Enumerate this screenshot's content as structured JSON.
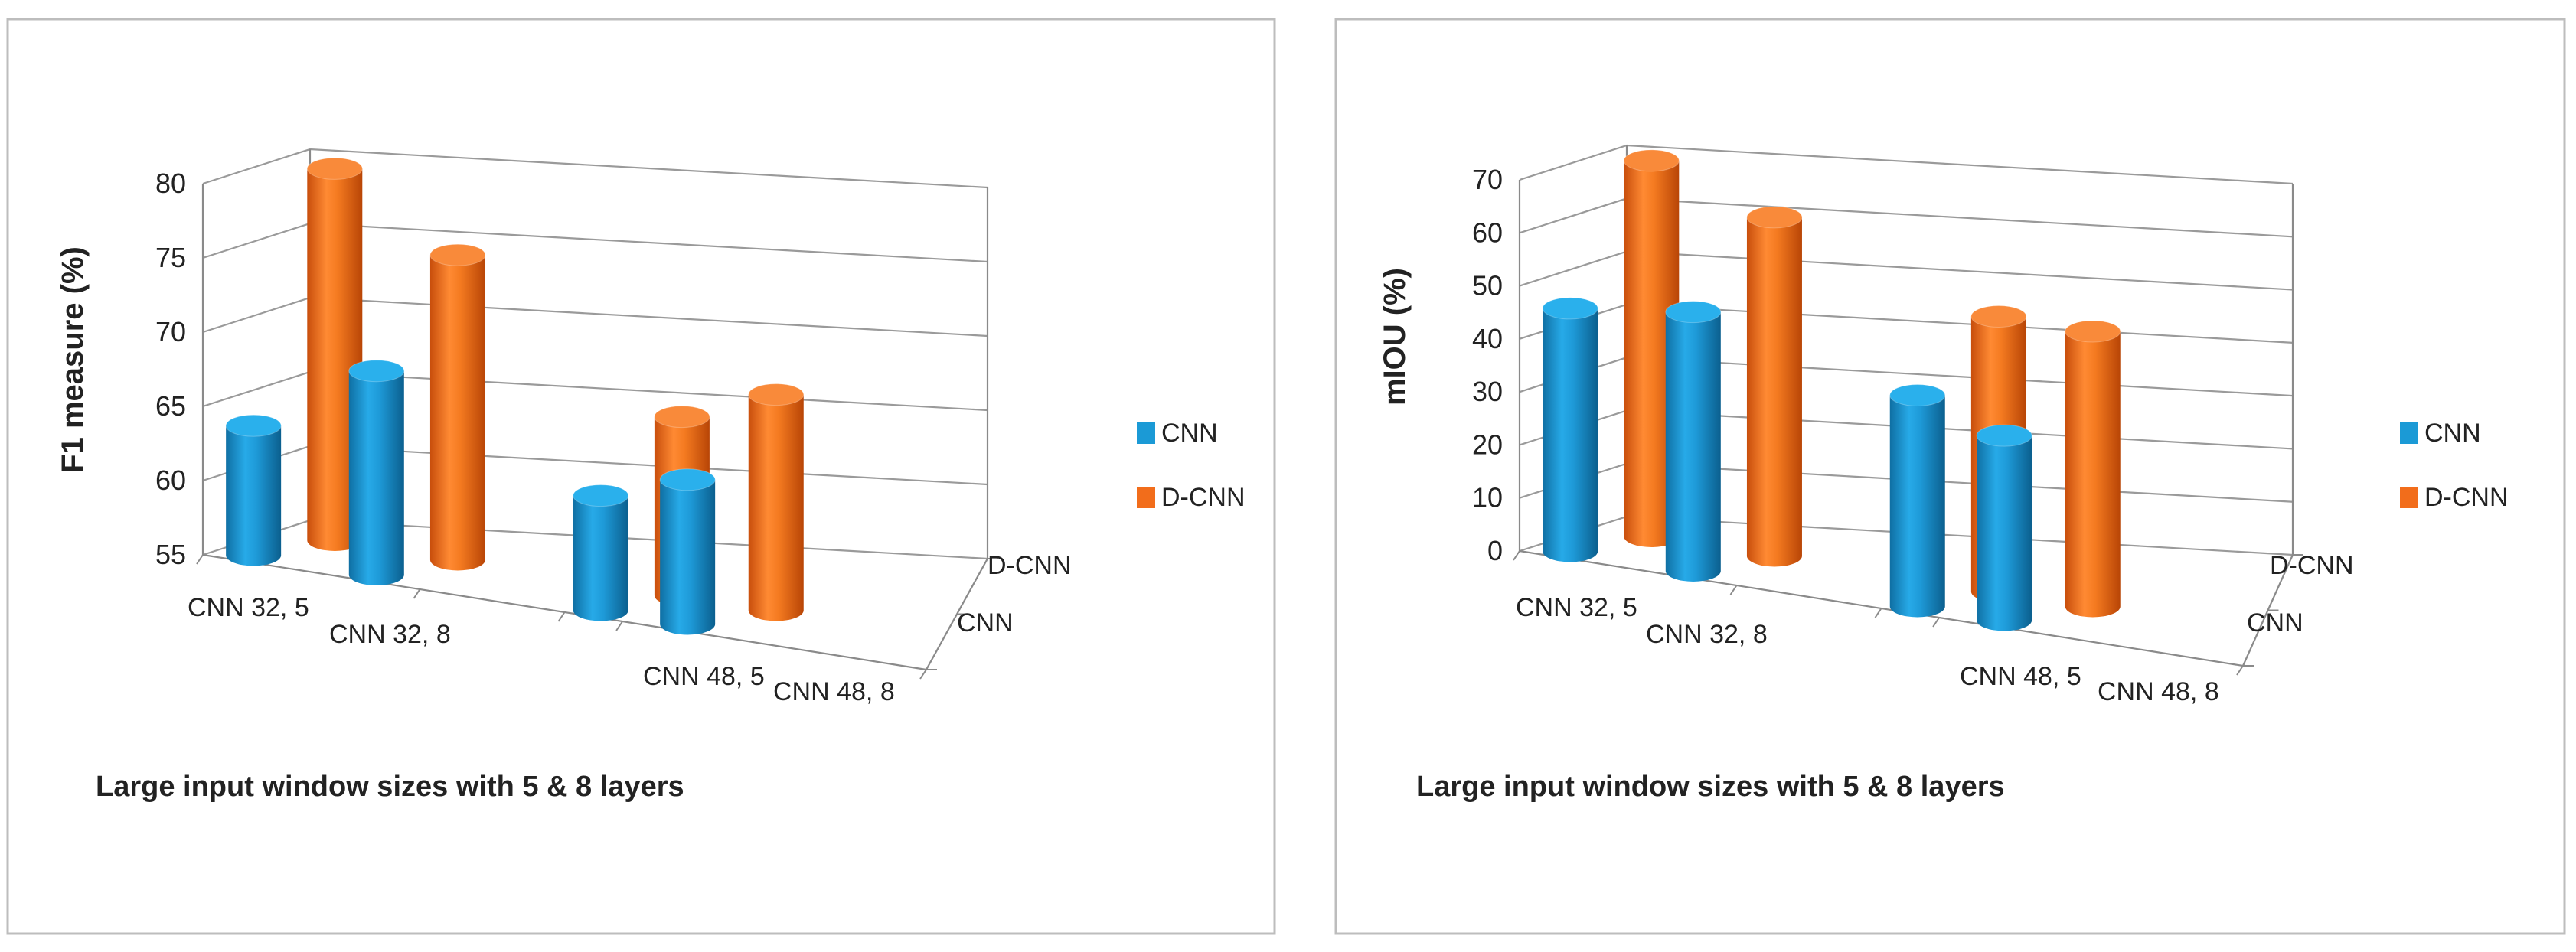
{
  "chart_data": [
    {
      "type": "bar",
      "style": "3d-cylinder",
      "title": "",
      "xlabel": "Large input window sizes with 5 & 8 layers",
      "ylabel": "F1 measure (%)",
      "ylim": [
        55,
        80
      ],
      "yticks": [
        55,
        60,
        65,
        70,
        75,
        80
      ],
      "grid": true,
      "legend_position": "right",
      "categories": [
        "CNN 32, 5",
        "CNN 32, 8",
        "CNN 48, 5",
        "CNN 48, 8"
      ],
      "depth_labels": [
        "D-CNN",
        "CNN"
      ],
      "series": [
        {
          "name": "CNN",
          "color": "#1b9ad6",
          "values": [
            64.5,
            69.5,
            63.5,
            65.5
          ]
        },
        {
          "name": "D-CNN",
          "color": "#f26d1b",
          "values": [
            79,
            74.5,
            66,
            68.5
          ]
        }
      ]
    },
    {
      "type": "bar",
      "style": "3d-cylinder",
      "title": "",
      "xlabel": "Large input window sizes with 5 & 8 layers",
      "ylabel": "mIOU (%)",
      "ylim": [
        0,
        70
      ],
      "yticks": [
        0,
        10,
        20,
        30,
        40,
        50,
        60,
        70
      ],
      "grid": true,
      "legend_position": "right",
      "categories": [
        "CNN 32, 5",
        "CNN 32, 8",
        "CNN 48, 5",
        "CNN 48, 8"
      ],
      "depth_labels": [
        "D-CNN",
        "CNN"
      ],
      "series": [
        {
          "name": "CNN",
          "color": "#1b9ad6",
          "values": [
            48,
            51,
            42,
            37
          ]
        },
        {
          "name": "D-CNN",
          "color": "#f26d1b",
          "values": [
            68,
            61,
            49,
            49
          ]
        }
      ]
    }
  ]
}
